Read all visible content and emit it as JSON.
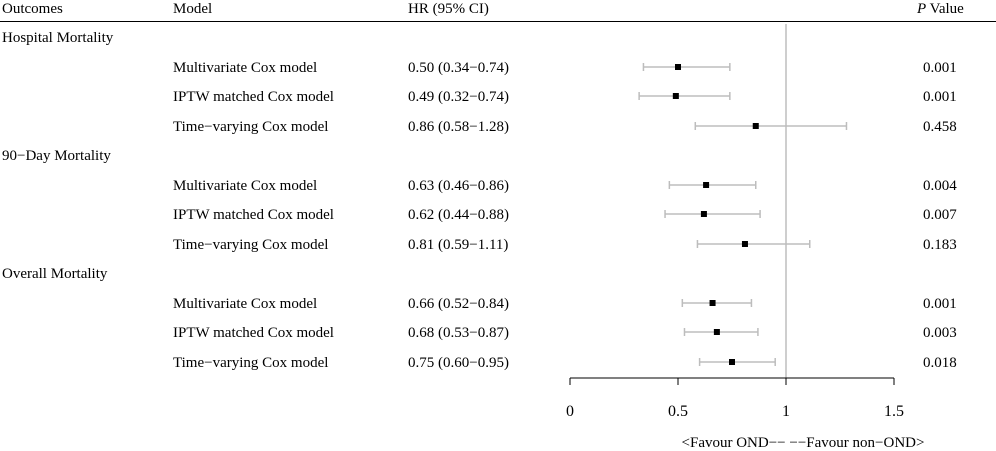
{
  "headers": {
    "outcomes": "Outcomes",
    "model": "Model",
    "hr": "HR (95% CI)",
    "p_italic": "P",
    "p_rest": " Value"
  },
  "groups": [
    {
      "name": "Hospital Mortality",
      "rows": [
        {
          "model": "Multivariate Cox model",
          "hr_text": "0.50 (0.34−0.74)",
          "p": "0.001"
        },
        {
          "model": "IPTW matched Cox model",
          "hr_text": "0.49 (0.32−0.74)",
          "p": "0.001"
        },
        {
          "model": "Time−varying Cox model",
          "hr_text": "0.86 (0.58−1.28)",
          "p": "0.458"
        }
      ]
    },
    {
      "name": "90−Day Mortality",
      "rows": [
        {
          "model": "Multivariate Cox model",
          "hr_text": "0.63 (0.46−0.86)",
          "p": "0.004"
        },
        {
          "model": "IPTW matched Cox model",
          "hr_text": "0.62 (0.44−0.88)",
          "p": "0.007"
        },
        {
          "model": "Time−varying Cox model",
          "hr_text": "0.81 (0.59−1.11)",
          "p": "0.183"
        }
      ]
    },
    {
      "name": "Overall Mortality",
      "rows": [
        {
          "model": "Multivariate Cox model",
          "hr_text": "0.66 (0.52−0.84)",
          "p": "0.001"
        },
        {
          "model": "IPTW matched Cox model",
          "hr_text": "0.68 (0.53−0.87)",
          "p": "0.003"
        },
        {
          "model": "Time−varying Cox model",
          "hr_text": "0.75 (0.60−0.95)",
          "p": "0.018"
        }
      ]
    }
  ],
  "axis_caption": "<Favour OND−−    −−Favour non−OND>",
  "colors": {
    "ci_line": "#bdbdbd",
    "ref_line": "#bdbdbd",
    "point": "#000000",
    "axis": "#000000"
  },
  "chart_data": {
    "type": "forest",
    "title": "",
    "xlabel": "<Favour OND−−    −−Favour non−OND>",
    "xlim": [
      0,
      1.5
    ],
    "xticks": [
      0,
      0.5,
      1,
      1.5
    ],
    "xtick_labels": [
      "0",
      "0.5",
      "1",
      "1.5"
    ],
    "reference_line": 1,
    "series": [
      {
        "name": "Hospital Mortality / Multivariate Cox model",
        "hr": 0.5,
        "lower": 0.34,
        "upper": 0.74
      },
      {
        "name": "Hospital Mortality / IPTW matched Cox model",
        "hr": 0.49,
        "lower": 0.32,
        "upper": 0.74
      },
      {
        "name": "Hospital Mortality / Time−varying Cox model",
        "hr": 0.86,
        "lower": 0.58,
        "upper": 1.28
      },
      {
        "name": "90−Day Mortality / Multivariate Cox model",
        "hr": 0.63,
        "lower": 0.46,
        "upper": 0.86
      },
      {
        "name": "90−Day Mortality / IPTW matched Cox model",
        "hr": 0.62,
        "lower": 0.44,
        "upper": 0.88
      },
      {
        "name": "90−Day Mortality / Time−varying Cox model",
        "hr": 0.81,
        "lower": 0.59,
        "upper": 1.11
      },
      {
        "name": "Overall Mortality / Multivariate Cox model",
        "hr": 0.66,
        "lower": 0.52,
        "upper": 0.84
      },
      {
        "name": "Overall Mortality / IPTW matched Cox model",
        "hr": 0.68,
        "lower": 0.53,
        "upper": 0.87
      },
      {
        "name": "Overall Mortality / Time−varying Cox model",
        "hr": 0.75,
        "lower": 0.6,
        "upper": 0.95
      }
    ]
  }
}
